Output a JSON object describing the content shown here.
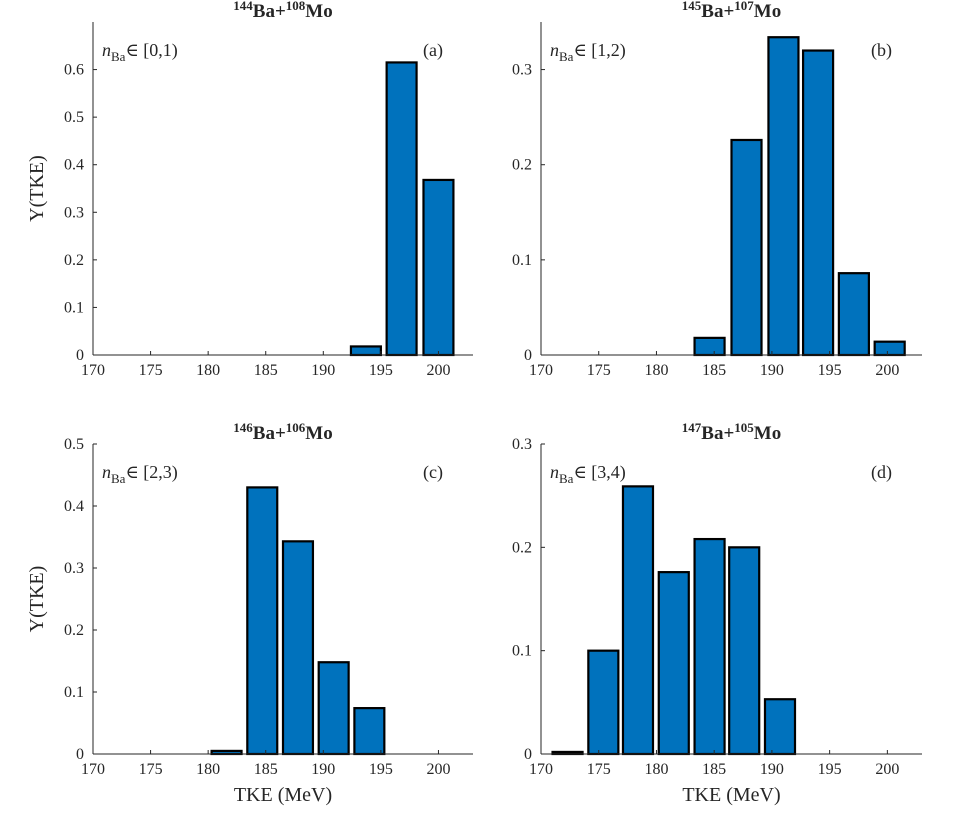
{
  "figure": {
    "shared_ylabel": "Y(TKE)",
    "shared_xlabel": "TKE (MeV)"
  },
  "chart_data": [
    {
      "type": "bar",
      "title": {
        "mass_ba": "144",
        "ba": "Ba+",
        "mass_mo": "108",
        "mo": "Mo"
      },
      "panel_label": "(a)",
      "annotation": {
        "n": "n",
        "sub": "Ba",
        "rest": "∈ [0,1)"
      },
      "xlabel": "",
      "ylabel": "Y(TKE)",
      "xlim": [
        170,
        203
      ],
      "ylim": [
        0,
        0.7
      ],
      "xticks": [
        170,
        175,
        180,
        185,
        190,
        195,
        200
      ],
      "yticks": [
        0,
        0.1,
        0.2,
        0.3,
        0.4,
        0.5,
        0.6
      ],
      "bar_width": 2.6,
      "categories": [
        193.7,
        196.8,
        200.0
      ],
      "values": [
        0.018,
        0.615,
        0.368
      ],
      "color": "#0072BD"
    },
    {
      "type": "bar",
      "title": {
        "mass_ba": "145",
        "ba": "Ba+",
        "mass_mo": "107",
        "mo": "Mo"
      },
      "panel_label": "(b)",
      "annotation": {
        "n": "n",
        "sub": "Ba",
        "rest": "∈ [1,2)"
      },
      "xlabel": "",
      "ylabel": "",
      "xlim": [
        170,
        203
      ],
      "ylim": [
        0,
        0.35
      ],
      "xticks": [
        170,
        175,
        180,
        185,
        190,
        195,
        200
      ],
      "yticks": [
        0,
        0.1,
        0.2,
        0.3
      ],
      "bar_width": 2.6,
      "categories": [
        184.6,
        187.8,
        191.0,
        194.0,
        197.1,
        200.2
      ],
      "values": [
        0.018,
        0.226,
        0.334,
        0.32,
        0.086,
        0.014
      ],
      "color": "#0072BD"
    },
    {
      "type": "bar",
      "title": {
        "mass_ba": "146",
        "ba": "Ba+",
        "mass_mo": "106",
        "mo": "Mo"
      },
      "panel_label": "(c)",
      "annotation": {
        "n": "n",
        "sub": "Ba",
        "rest": "∈ [2,3)"
      },
      "xlabel": "TKE (MeV)",
      "ylabel": "Y(TKE)",
      "xlim": [
        170,
        203
      ],
      "ylim": [
        0,
        0.5
      ],
      "xticks": [
        170,
        175,
        180,
        185,
        190,
        195,
        200
      ],
      "yticks": [
        0,
        0.1,
        0.2,
        0.3,
        0.4,
        0.5
      ],
      "bar_width": 2.6,
      "categories": [
        181.6,
        184.7,
        187.8,
        190.9,
        194.0
      ],
      "values": [
        0.005,
        0.43,
        0.343,
        0.148,
        0.074
      ],
      "color": "#0072BD"
    },
    {
      "type": "bar",
      "title": {
        "mass_ba": "147",
        "ba": "Ba+",
        "mass_mo": "105",
        "mo": "Mo"
      },
      "panel_label": "(d)",
      "annotation": {
        "n": "n",
        "sub": "Ba",
        "rest": "∈ [3,4)"
      },
      "xlabel": "TKE (MeV)",
      "ylabel": "",
      "xlim": [
        170,
        203
      ],
      "ylim": [
        0,
        0.3
      ],
      "xticks": [
        170,
        175,
        180,
        185,
        190,
        195,
        200
      ],
      "yticks": [
        0,
        0.1,
        0.2,
        0.3
      ],
      "bar_width": 2.6,
      "categories": [
        172.3,
        175.4,
        178.4,
        181.5,
        184.6,
        187.6,
        190.7
      ],
      "values": [
        0.002,
        0.1,
        0.259,
        0.176,
        0.208,
        0.2,
        0.053
      ],
      "color": "#0072BD"
    }
  ]
}
